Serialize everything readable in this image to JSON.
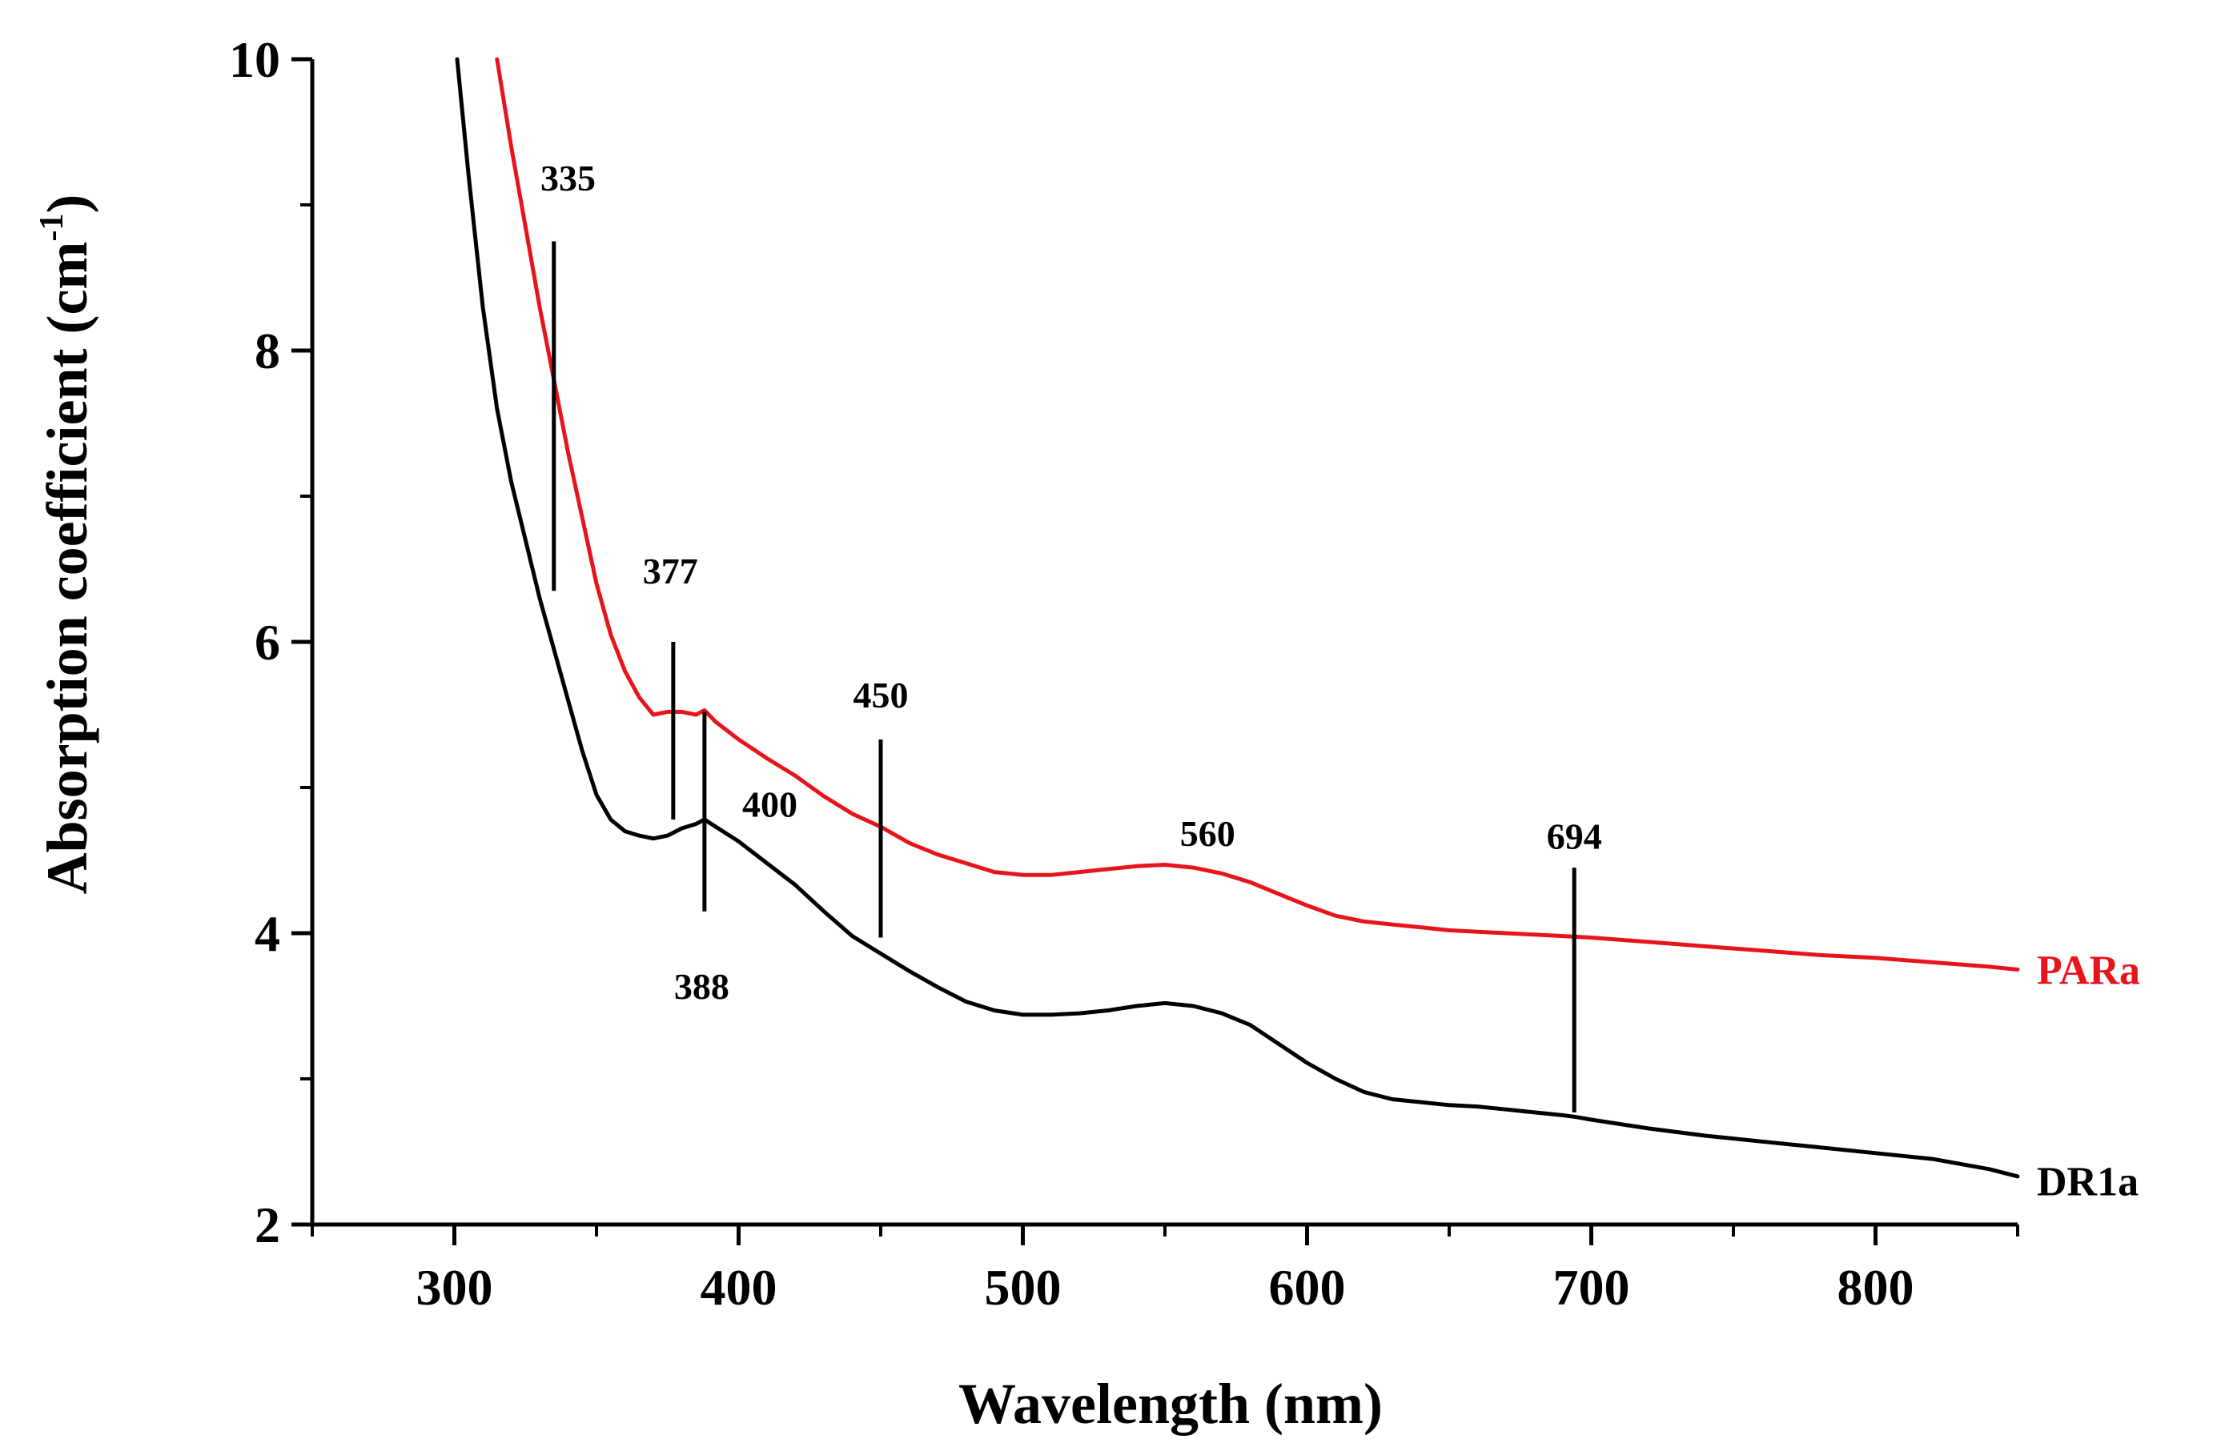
{
  "chart_data": {
    "type": "line",
    "title": "",
    "xlabel": "Wavelength (nm)",
    "ylabel_main": "Absorption coefficient (cm",
    "ylabel_sup": "-1",
    "ylabel_close": ")",
    "xlim": [
      250,
      850
    ],
    "ylim": [
      2,
      10
    ],
    "xticks": [
      300,
      400,
      500,
      600,
      700,
      800
    ],
    "xtick_labels": [
      "300",
      "400",
      "500",
      "600",
      "700",
      "800"
    ],
    "xminor": [
      250,
      350,
      450,
      550,
      650,
      750,
      850
    ],
    "yticks": [
      2,
      4,
      6,
      8,
      10
    ],
    "ytick_labels": [
      "2",
      "4",
      "6",
      "8",
      "10"
    ],
    "yminor": [
      3,
      5,
      7,
      9
    ],
    "grid": false,
    "series": [
      {
        "name": "PARa",
        "color": "#e8141b",
        "x": [
          315,
          320,
          325,
          330,
          335,
          340,
          345,
          350,
          355,
          360,
          365,
          370,
          375,
          380,
          385,
          388,
          392,
          400,
          410,
          420,
          430,
          440,
          450,
          460,
          470,
          480,
          490,
          500,
          510,
          520,
          530,
          540,
          550,
          560,
          570,
          580,
          590,
          600,
          610,
          620,
          630,
          640,
          650,
          660,
          670,
          680,
          690,
          700,
          720,
          740,
          760,
          780,
          800,
          820,
          840,
          850
        ],
        "y": [
          10.0,
          9.4,
          8.85,
          8.3,
          7.8,
          7.3,
          6.85,
          6.4,
          6.05,
          5.8,
          5.62,
          5.5,
          5.52,
          5.52,
          5.5,
          5.53,
          5.45,
          5.33,
          5.2,
          5.08,
          4.94,
          4.82,
          4.73,
          4.62,
          4.54,
          4.48,
          4.42,
          4.4,
          4.4,
          4.42,
          4.44,
          4.46,
          4.47,
          4.45,
          4.41,
          4.35,
          4.27,
          4.19,
          4.12,
          4.08,
          4.06,
          4.04,
          4.02,
          4.01,
          4.0,
          3.99,
          3.98,
          3.97,
          3.94,
          3.91,
          3.88,
          3.85,
          3.83,
          3.8,
          3.77,
          3.75
        ]
      },
      {
        "name": "DR1a",
        "color": "#000000",
        "x": [
          301,
          305,
          310,
          315,
          320,
          325,
          330,
          335,
          340,
          345,
          350,
          355,
          360,
          365,
          370,
          375,
          380,
          385,
          388,
          392,
          400,
          410,
          420,
          430,
          440,
          450,
          460,
          470,
          480,
          490,
          500,
          510,
          520,
          530,
          540,
          550,
          560,
          570,
          580,
          590,
          600,
          610,
          620,
          630,
          640,
          650,
          660,
          670,
          680,
          690,
          694,
          700,
          720,
          740,
          760,
          780,
          800,
          820,
          840,
          850
        ],
        "y": [
          10.0,
          9.2,
          8.3,
          7.6,
          7.1,
          6.7,
          6.3,
          5.95,
          5.6,
          5.25,
          4.95,
          4.78,
          4.7,
          4.67,
          4.65,
          4.67,
          4.72,
          4.75,
          4.78,
          4.73,
          4.63,
          4.48,
          4.33,
          4.15,
          3.98,
          3.86,
          3.74,
          3.63,
          3.53,
          3.47,
          3.44,
          3.44,
          3.45,
          3.47,
          3.5,
          3.52,
          3.5,
          3.45,
          3.37,
          3.24,
          3.11,
          3.0,
          2.91,
          2.86,
          2.84,
          2.82,
          2.81,
          2.79,
          2.77,
          2.75,
          2.74,
          2.72,
          2.66,
          2.61,
          2.57,
          2.53,
          2.49,
          2.45,
          2.38,
          2.33
        ]
      }
    ],
    "annotations": [
      {
        "label": "335",
        "x": 335,
        "y_from": 6.35,
        "y_to": 8.75,
        "label_x": 340,
        "label_y": 9.1,
        "anchor": "middle"
      },
      {
        "label": "377",
        "x": 377,
        "y_from": 4.78,
        "y_to": 6.0,
        "label_x": 376,
        "label_y": 6.4,
        "anchor": "middle"
      },
      {
        "label": "388",
        "x": 388,
        "y_from": 4.15,
        "y_to": 5.52,
        "label_x": 387,
        "label_y": 3.55,
        "anchor": "middle"
      },
      {
        "label": "400",
        "x": null,
        "y_from": null,
        "y_to": null,
        "label_x": 411,
        "label_y": 4.8,
        "anchor": "middle"
      },
      {
        "label": "450",
        "x": 450,
        "y_from": 3.97,
        "y_to": 5.33,
        "label_x": 450,
        "label_y": 5.55,
        "anchor": "middle"
      },
      {
        "label": "560",
        "x": null,
        "y_from": null,
        "y_to": null,
        "label_x": 565,
        "label_y": 4.6,
        "anchor": "middle"
      },
      {
        "label": "694",
        "x": 694,
        "y_from": 2.77,
        "y_to": 4.45,
        "label_x": 694,
        "label_y": 4.58,
        "anchor": "middle"
      }
    ],
    "series_labels": [
      {
        "text": "PARa",
        "color": "#e8141b",
        "y": 3.75
      },
      {
        "text": "DR1a",
        "color": "#000000",
        "y": 2.3
      }
    ]
  }
}
